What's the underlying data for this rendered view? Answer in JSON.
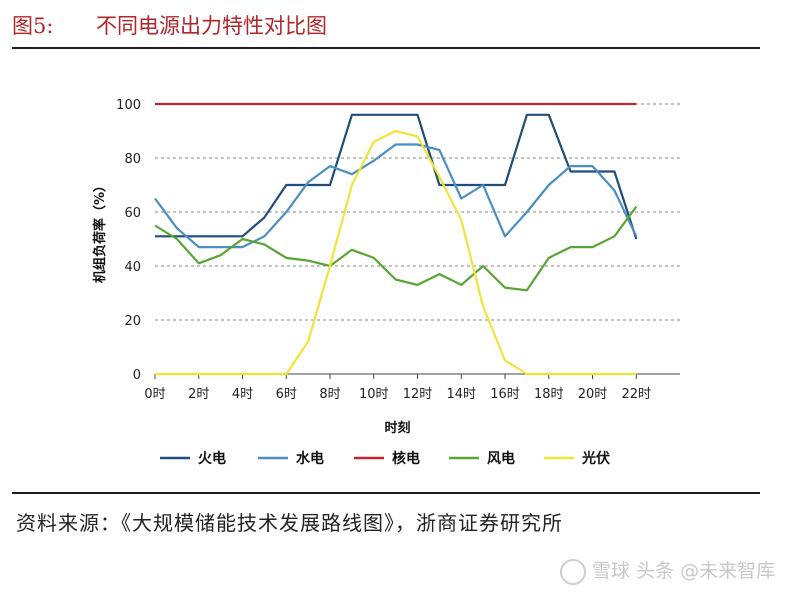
{
  "figure": {
    "label": "图5:",
    "title": "不同电源出力特性对比图"
  },
  "source": "资料来源：《大规模储能技术发展路线图》，浙商证券研究所",
  "watermark": "雪球 头条 @未来智库",
  "chart_data": {
    "type": "line",
    "title": "",
    "xlabel": "时刻",
    "ylabel": "机组负荷率（%）",
    "x_ticks": [
      "0时",
      "2时",
      "4时",
      "6时",
      "8时",
      "10时",
      "12时",
      "14时",
      "16时",
      "18时",
      "20时",
      "22时"
    ],
    "x_tick_values": [
      0,
      2,
      4,
      6,
      8,
      10,
      12,
      14,
      16,
      18,
      20,
      22
    ],
    "y_ticks": [
      0,
      20,
      40,
      60,
      80,
      100
    ],
    "xlim": [
      0,
      24
    ],
    "ylim": [
      0,
      100
    ],
    "grid": "horizontal dashed",
    "legend_position": "bottom",
    "series": [
      {
        "name": "火电",
        "color": "#1f4e79",
        "x": [
          0,
          4,
          5,
          6,
          8,
          9,
          12,
          13,
          16,
          17,
          18,
          19,
          21,
          22
        ],
        "y": [
          51,
          51,
          58,
          70,
          70,
          96,
          96,
          70,
          70,
          96,
          96,
          75,
          75,
          50
        ]
      },
      {
        "name": "水电",
        "color": "#4a8ec2",
        "x": [
          0,
          1,
          2,
          4,
          5,
          6,
          7,
          8,
          9,
          10,
          11,
          12,
          13,
          14,
          15,
          16,
          17,
          18,
          19,
          20,
          21,
          22
        ],
        "y": [
          65,
          54,
          47,
          47,
          51,
          60,
          71,
          77,
          74,
          79,
          85,
          85,
          83,
          65,
          70,
          51,
          60,
          70,
          77,
          77,
          68,
          51
        ]
      },
      {
        "name": "核电",
        "color": "#c0282d",
        "x": [
          0,
          22
        ],
        "y": [
          100,
          100
        ]
      },
      {
        "name": "风电",
        "color": "#59a534",
        "x": [
          0,
          1,
          2,
          3,
          4,
          5,
          6,
          7,
          8,
          9,
          10,
          11,
          12,
          13,
          14,
          15,
          16,
          17,
          18,
          19,
          20,
          21,
          22
        ],
        "y": [
          55,
          50,
          41,
          44,
          50,
          48,
          43,
          42,
          40,
          46,
          43,
          35,
          33,
          37,
          33,
          40,
          32,
          31,
          43,
          47,
          47,
          51,
          62
        ]
      },
      {
        "name": "光伏",
        "color": "#f2e33a",
        "x": [
          0,
          6,
          7,
          8,
          9,
          10,
          11,
          12,
          13,
          14,
          15,
          16,
          17,
          18,
          22
        ],
        "y": [
          0,
          0,
          12,
          40,
          70,
          86,
          90,
          88,
          73,
          57,
          25,
          5,
          0,
          0,
          0
        ]
      }
    ]
  }
}
